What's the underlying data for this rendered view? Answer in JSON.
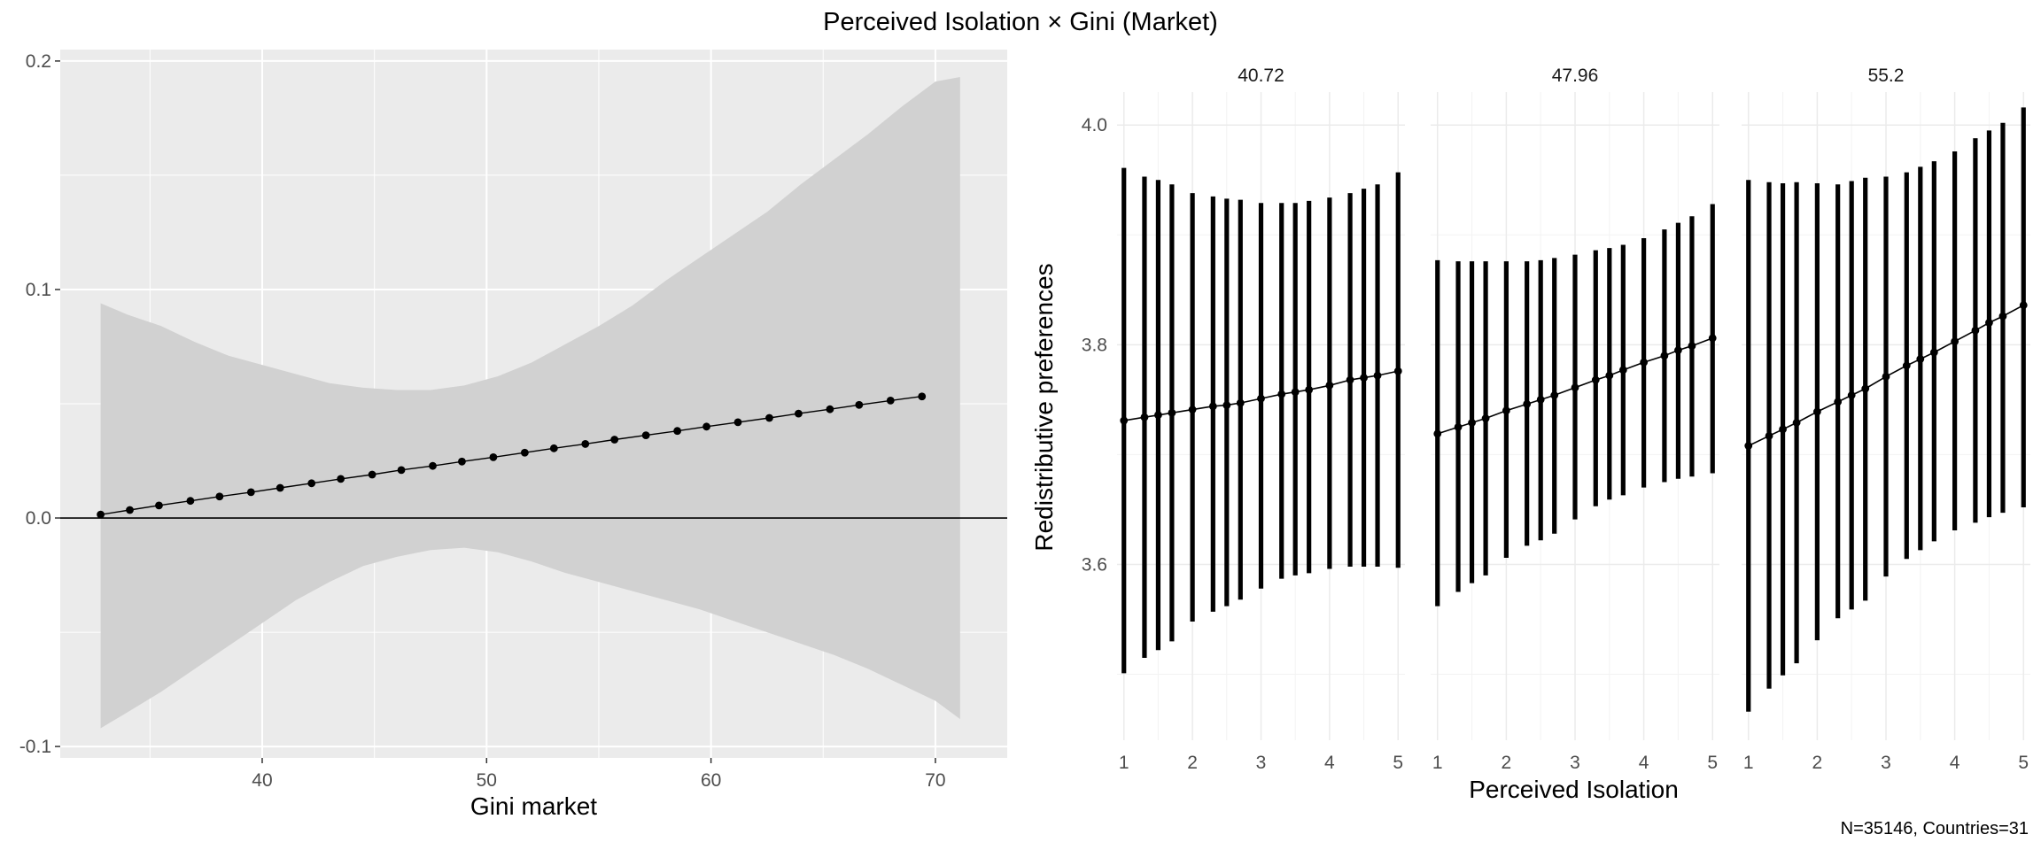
{
  "title": "Perceived Isolation × Gini (Market)",
  "caption": "N=35146, Countries=31",
  "colors": {
    "panel_bg_left": "#ebebeb",
    "grid_left": "#ffffff",
    "ribbon": "#d1d1d1",
    "line": "#000000",
    "grid_right": "#ebebeb"
  },
  "chart_data": [
    {
      "type": "line",
      "xlabel": "Gini market",
      "ylabel": "",
      "xlim": [
        31.0,
        73.2
      ],
      "ylim": [
        -0.105,
        0.205
      ],
      "xticks": [
        40,
        50,
        60,
        70
      ],
      "yticks": [
        -0.1,
        0.0,
        0.1,
        0.2
      ],
      "ytick_labels": [
        "-0.1",
        "0.0",
        "0.1",
        "0.2"
      ],
      "grid": true,
      "hline": 0.0,
      "points": [
        {
          "x": 32.8,
          "y": 0.0015
        },
        {
          "x": 34.1,
          "y": 0.0035
        },
        {
          "x": 35.4,
          "y": 0.0055
        },
        {
          "x": 36.8,
          "y": 0.0075
        },
        {
          "x": 38.1,
          "y": 0.0094
        },
        {
          "x": 39.5,
          "y": 0.0113
        },
        {
          "x": 40.8,
          "y": 0.0132
        },
        {
          "x": 42.2,
          "y": 0.0152
        },
        {
          "x": 43.5,
          "y": 0.0171
        },
        {
          "x": 44.9,
          "y": 0.019
        },
        {
          "x": 46.2,
          "y": 0.021
        },
        {
          "x": 47.6,
          "y": 0.0228
        },
        {
          "x": 48.9,
          "y": 0.0247
        },
        {
          "x": 50.3,
          "y": 0.0266
        },
        {
          "x": 51.7,
          "y": 0.0286
        },
        {
          "x": 53.0,
          "y": 0.0305
        },
        {
          "x": 54.4,
          "y": 0.0324
        },
        {
          "x": 55.7,
          "y": 0.0343
        },
        {
          "x": 57.1,
          "y": 0.0362
        },
        {
          "x": 58.5,
          "y": 0.0381
        },
        {
          "x": 59.8,
          "y": 0.04
        },
        {
          "x": 61.2,
          "y": 0.0419
        },
        {
          "x": 62.6,
          "y": 0.0438
        },
        {
          "x": 63.9,
          "y": 0.0457
        },
        {
          "x": 65.3,
          "y": 0.0476
        },
        {
          "x": 66.6,
          "y": 0.0495
        },
        {
          "x": 68.0,
          "y": 0.0514
        },
        {
          "x": 69.4,
          "y": 0.0532
        }
      ],
      "ribbon": [
        {
          "x": 32.8,
          "lo": -0.092,
          "hi": 0.094
        },
        {
          "x": 34.0,
          "lo": -0.085,
          "hi": 0.089
        },
        {
          "x": 35.5,
          "lo": -0.076,
          "hi": 0.084
        },
        {
          "x": 37.0,
          "lo": -0.066,
          "hi": 0.077
        },
        {
          "x": 38.5,
          "lo": -0.056,
          "hi": 0.071
        },
        {
          "x": 40.0,
          "lo": -0.046,
          "hi": 0.067
        },
        {
          "x": 41.5,
          "lo": -0.036,
          "hi": 0.063
        },
        {
          "x": 43.0,
          "lo": -0.028,
          "hi": 0.059
        },
        {
          "x": 44.5,
          "lo": -0.021,
          "hi": 0.057
        },
        {
          "x": 46.0,
          "lo": -0.017,
          "hi": 0.056
        },
        {
          "x": 47.5,
          "lo": -0.014,
          "hi": 0.056
        },
        {
          "x": 49.0,
          "lo": -0.013,
          "hi": 0.058
        },
        {
          "x": 50.5,
          "lo": -0.015,
          "hi": 0.062
        },
        {
          "x": 52.0,
          "lo": -0.019,
          "hi": 0.068
        },
        {
          "x": 53.5,
          "lo": -0.024,
          "hi": 0.076
        },
        {
          "x": 55.0,
          "lo": -0.028,
          "hi": 0.084
        },
        {
          "x": 56.5,
          "lo": -0.032,
          "hi": 0.093
        },
        {
          "x": 58.0,
          "lo": -0.036,
          "hi": 0.104
        },
        {
          "x": 59.5,
          "lo": -0.04,
          "hi": 0.114
        },
        {
          "x": 61.0,
          "lo": -0.045,
          "hi": 0.124
        },
        {
          "x": 62.5,
          "lo": -0.05,
          "hi": 0.134
        },
        {
          "x": 64.0,
          "lo": -0.055,
          "hi": 0.146
        },
        {
          "x": 65.5,
          "lo": -0.06,
          "hi": 0.157
        },
        {
          "x": 67.0,
          "lo": -0.066,
          "hi": 0.168
        },
        {
          "x": 68.5,
          "lo": -0.073,
          "hi": 0.18
        },
        {
          "x": 70.0,
          "lo": -0.08,
          "hi": 0.191
        },
        {
          "x": 71.1,
          "lo": -0.088,
          "hi": 0.193
        }
      ]
    },
    {
      "type": "line",
      "xlabel": "Perceived Isolation",
      "ylabel": "Redistributive preferences",
      "xlim": [
        0.9,
        5.1
      ],
      "ylim": [
        3.44,
        4.03
      ],
      "xticks": [
        1,
        2,
        3,
        4,
        5
      ],
      "yticks": [
        3.6,
        3.8,
        4.0
      ],
      "ytick_labels": [
        "3.6",
        "3.8",
        "4.0"
      ],
      "grid": true,
      "x": [
        1.0,
        1.3,
        1.5,
        1.7,
        2.0,
        2.3,
        2.5,
        2.7,
        3.0,
        3.3,
        3.5,
        3.7,
        4.0,
        4.3,
        4.5,
        4.7,
        5.0
      ],
      "panels": [
        {
          "label": "40.72",
          "y": [
            3.731,
            3.734,
            3.736,
            3.738,
            3.741,
            3.744,
            3.745,
            3.747,
            3.751,
            3.755,
            3.757,
            3.759,
            3.763,
            3.768,
            3.77,
            3.772,
            3.776
          ],
          "lo": [
            3.501,
            3.515,
            3.522,
            3.53,
            3.548,
            3.557,
            3.562,
            3.568,
            3.578,
            3.587,
            3.59,
            3.592,
            3.596,
            3.598,
            3.598,
            3.598,
            3.597
          ],
          "hi": [
            3.961,
            3.953,
            3.95,
            3.946,
            3.938,
            3.935,
            3.933,
            3.932,
            3.929,
            3.929,
            3.929,
            3.931,
            3.934,
            3.938,
            3.942,
            3.946,
            3.957
          ]
        },
        {
          "label": "47.96",
          "y": [
            3.719,
            3.725,
            3.729,
            3.733,
            3.74,
            3.746,
            3.75,
            3.754,
            3.761,
            3.768,
            3.772,
            3.777,
            3.784,
            3.79,
            3.795,
            3.799,
            3.806
          ],
          "lo": [
            3.562,
            3.575,
            3.583,
            3.59,
            3.606,
            3.617,
            3.622,
            3.628,
            3.641,
            3.653,
            3.659,
            3.663,
            3.67,
            3.675,
            3.678,
            3.68,
            3.683
          ],
          "hi": [
            3.877,
            3.876,
            3.876,
            3.876,
            3.876,
            3.876,
            3.877,
            3.879,
            3.882,
            3.886,
            3.888,
            3.891,
            3.897,
            3.905,
            3.911,
            3.917,
            3.928
          ]
        },
        {
          "label": "55.2",
          "y": [
            3.708,
            3.717,
            3.723,
            3.729,
            3.739,
            3.748,
            3.754,
            3.76,
            3.771,
            3.781,
            3.787,
            3.793,
            3.803,
            3.813,
            3.82,
            3.826,
            3.836
          ],
          "lo": [
            3.466,
            3.487,
            3.499,
            3.51,
            3.531,
            3.551,
            3.559,
            3.567,
            3.589,
            3.605,
            3.613,
            3.621,
            3.631,
            3.638,
            3.643,
            3.647,
            3.652
          ],
          "hi": [
            3.95,
            3.948,
            3.947,
            3.948,
            3.947,
            3.946,
            3.949,
            3.952,
            3.953,
            3.957,
            3.962,
            3.967,
            3.976,
            3.988,
            3.995,
            4.002,
            4.016
          ]
        }
      ]
    }
  ]
}
